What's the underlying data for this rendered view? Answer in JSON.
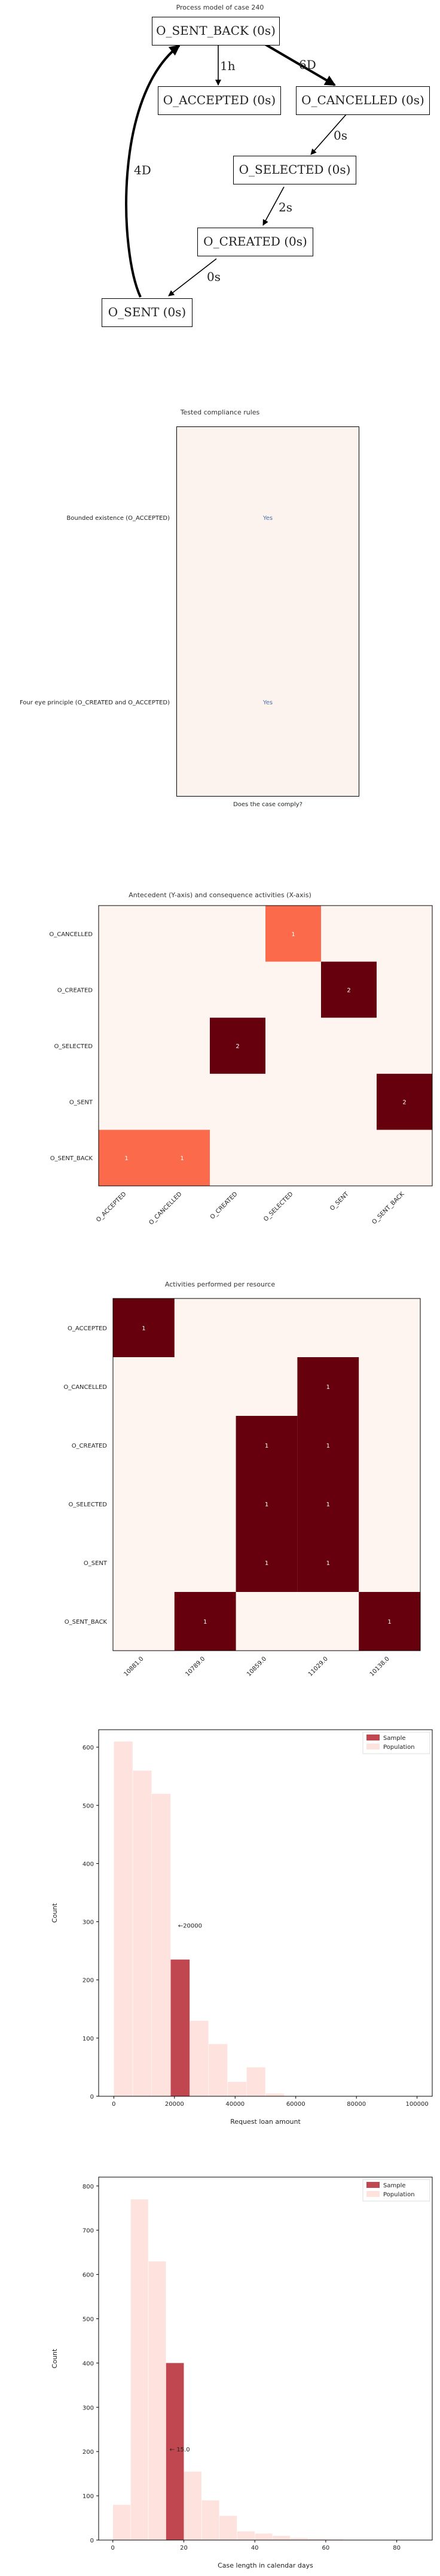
{
  "process_model": {
    "title": "Process model of case 240",
    "nodes": {
      "sent_back": "O_SENT_BACK (0s)",
      "accepted": "O_ACCEPTED (0s)",
      "cancelled": "O_CANCELLED (0s)",
      "selected": "O_SELECTED (0s)",
      "created": "O_CREATED (0s)",
      "sent": "O_SENT (0s)"
    },
    "edges": {
      "sb_acc": "1h",
      "sb_can": "6D",
      "can_sel": "0s",
      "sel_cre": "2s",
      "cre_sent": "0s",
      "sent_sb": "4D"
    }
  },
  "chart_data": [
    {
      "type": "table",
      "title": "Tested compliance rules",
      "xlabel": "Does the case comply?",
      "rows": [
        "Bounded existence (O_ACCEPTED)",
        "Four eye principle (O_CREATED and O_ACCEPTED)"
      ],
      "values": [
        "Yes",
        "Yes"
      ],
      "colors": {
        "cell": "#fdf3ee",
        "text": "#4a6fa5"
      }
    },
    {
      "type": "heatmap",
      "title": "Antecedent (Y-axis) and consequence activities (X-axis)",
      "x": [
        "O_ACCEPTED",
        "O_CANCELLED",
        "O_CREATED",
        "O_SELECTED",
        "O_SENT",
        "O_SENT_BACK"
      ],
      "y": [
        "O_CANCELLED",
        "O_CREATED",
        "O_SELECTED",
        "O_SENT",
        "O_SENT_BACK"
      ],
      "cells": [
        {
          "row": 0,
          "col": 3,
          "value": 1
        },
        {
          "row": 1,
          "col": 4,
          "value": 2
        },
        {
          "row": 2,
          "col": 2,
          "value": 2
        },
        {
          "row": 3,
          "col": 5,
          "value": 2
        },
        {
          "row": 4,
          "col": 0,
          "value": 1
        },
        {
          "row": 4,
          "col": 1,
          "value": 1
        }
      ],
      "colors": {
        "low": "#fb6a4a",
        "high": "#67000d",
        "empty": "#fff5f0"
      }
    },
    {
      "type": "heatmap",
      "title": "Activities performed per resource",
      "x": [
        "10881.0",
        "10789.0",
        "10859.0",
        "11029.0",
        "10138.0"
      ],
      "y": [
        "O_ACCEPTED",
        "O_CANCELLED",
        "O_CREATED",
        "O_SELECTED",
        "O_SENT",
        "O_SENT_BACK"
      ],
      "cells": [
        {
          "row": 0,
          "col": 0,
          "value": 1
        },
        {
          "row": 1,
          "col": 3,
          "value": 1
        },
        {
          "row": 2,
          "col": 2,
          "value": 1
        },
        {
          "row": 2,
          "col": 3,
          "value": 1
        },
        {
          "row": 3,
          "col": 2,
          "value": 1
        },
        {
          "row": 3,
          "col": 3,
          "value": 1
        },
        {
          "row": 4,
          "col": 2,
          "value": 1
        },
        {
          "row": 4,
          "col": 3,
          "value": 1
        },
        {
          "row": 5,
          "col": 1,
          "value": 1
        },
        {
          "row": 5,
          "col": 4,
          "value": 1
        }
      ],
      "colors": {
        "high": "#67000d",
        "empty": "#fff5f0"
      }
    },
    {
      "type": "bar",
      "title": "",
      "xlabel": "Request loan amount",
      "ylabel": "Count",
      "xlim": [
        -5000,
        105000
      ],
      "ylim": [
        0,
        630
      ],
      "xticks": [
        "0",
        "20000",
        "40000",
        "60000",
        "80000",
        "100000"
      ],
      "xtick_values": [
        0,
        20000,
        40000,
        60000,
        80000,
        100000
      ],
      "yticks": [
        "0",
        "100",
        "200",
        "300",
        "400",
        "500",
        "600"
      ],
      "bin_edges": [
        0,
        6250,
        12500,
        18750,
        25000,
        31250,
        37500,
        43750,
        50000,
        56250
      ],
      "series": [
        {
          "name": "Population",
          "values": [
            610,
            560,
            520,
            235,
            130,
            90,
            25,
            50,
            5
          ]
        },
        {
          "name": "Sample",
          "values": [
            0,
            0,
            0,
            235,
            0,
            0,
            0,
            0,
            0
          ]
        }
      ],
      "annotation": "←20000",
      "annotation_at": [
        20000,
        290
      ],
      "legend": "top-right",
      "colors": {
        "sample": "#c0474f",
        "population": "#fee2de"
      }
    },
    {
      "type": "bar",
      "title": "",
      "xlabel": "Case length in calendar days",
      "ylabel": "Count",
      "xlim": [
        -4,
        90
      ],
      "ylim": [
        0,
        820
      ],
      "xticks": [
        "0",
        "20",
        "40",
        "60",
        "80"
      ],
      "xtick_values": [
        0,
        20,
        40,
        60,
        80
      ],
      "yticks": [
        "0",
        "100",
        "200",
        "300",
        "400",
        "500",
        "600",
        "700",
        "800"
      ],
      "bin_edges": [
        0,
        5,
        10,
        15,
        20,
        25,
        30,
        35,
        40,
        45,
        50,
        55,
        60,
        65,
        70
      ],
      "series": [
        {
          "name": "Population",
          "values": [
            80,
            770,
            630,
            400,
            155,
            90,
            55,
            20,
            15,
            10,
            5,
            3,
            2,
            1
          ]
        },
        {
          "name": "Sample",
          "values": [
            0,
            0,
            0,
            400,
            0,
            0,
            0,
            0,
            0,
            0,
            0,
            0,
            0,
            0
          ]
        }
      ],
      "annotation": "← 15.0",
      "annotation_at": [
        15,
        200
      ],
      "legend": "top-right",
      "colors": {
        "sample": "#c0474f",
        "population": "#fee2de"
      }
    }
  ]
}
